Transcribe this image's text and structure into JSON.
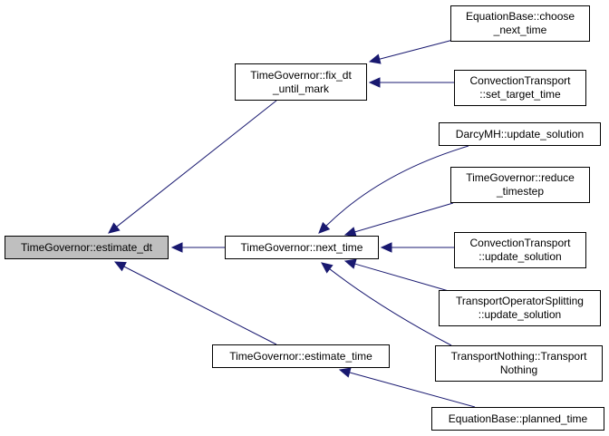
{
  "colors": {
    "edge": "#191970",
    "focus_fill": "#bfbfbf",
    "node_fill": "#ffffff",
    "border": "#000000"
  },
  "nodes": [
    {
      "id": "estimate_dt",
      "label": "TimeGovernor::estimate_dt",
      "focus": true
    },
    {
      "id": "fix_dt",
      "label": "TimeGovernor::fix_dt\n_until_mark"
    },
    {
      "id": "next_time",
      "label": "TimeGovernor::next_time"
    },
    {
      "id": "estimate_time",
      "label": "TimeGovernor::estimate_time"
    },
    {
      "id": "choose_next_time",
      "label": "EquationBase::choose\n_next_time"
    },
    {
      "id": "set_target_time",
      "label": "ConvectionTransport\n::set_target_time"
    },
    {
      "id": "darcy_update",
      "label": "DarcyMH::update_solution"
    },
    {
      "id": "reduce_timestep",
      "label": "TimeGovernor::reduce\n_timestep"
    },
    {
      "id": "conv_update",
      "label": "ConvectionTransport\n::update_solution"
    },
    {
      "id": "tos_update",
      "label": "TransportOperatorSplitting\n::update_solution"
    },
    {
      "id": "transport_nothing",
      "label": "TransportNothing::Transport\nNothing"
    },
    {
      "id": "planned_time",
      "label": "EquationBase::planned_time"
    }
  ],
  "edges": [
    {
      "from": "fix_dt",
      "to": "estimate_dt"
    },
    {
      "from": "next_time",
      "to": "estimate_dt"
    },
    {
      "from": "estimate_time",
      "to": "estimate_dt"
    },
    {
      "from": "choose_next_time",
      "to": "fix_dt"
    },
    {
      "from": "set_target_time",
      "to": "fix_dt"
    },
    {
      "from": "darcy_update",
      "to": "next_time"
    },
    {
      "from": "reduce_timestep",
      "to": "next_time"
    },
    {
      "from": "conv_update",
      "to": "next_time"
    },
    {
      "from": "tos_update",
      "to": "next_time"
    },
    {
      "from": "transport_nothing",
      "to": "next_time"
    },
    {
      "from": "planned_time",
      "to": "estimate_time"
    }
  ]
}
